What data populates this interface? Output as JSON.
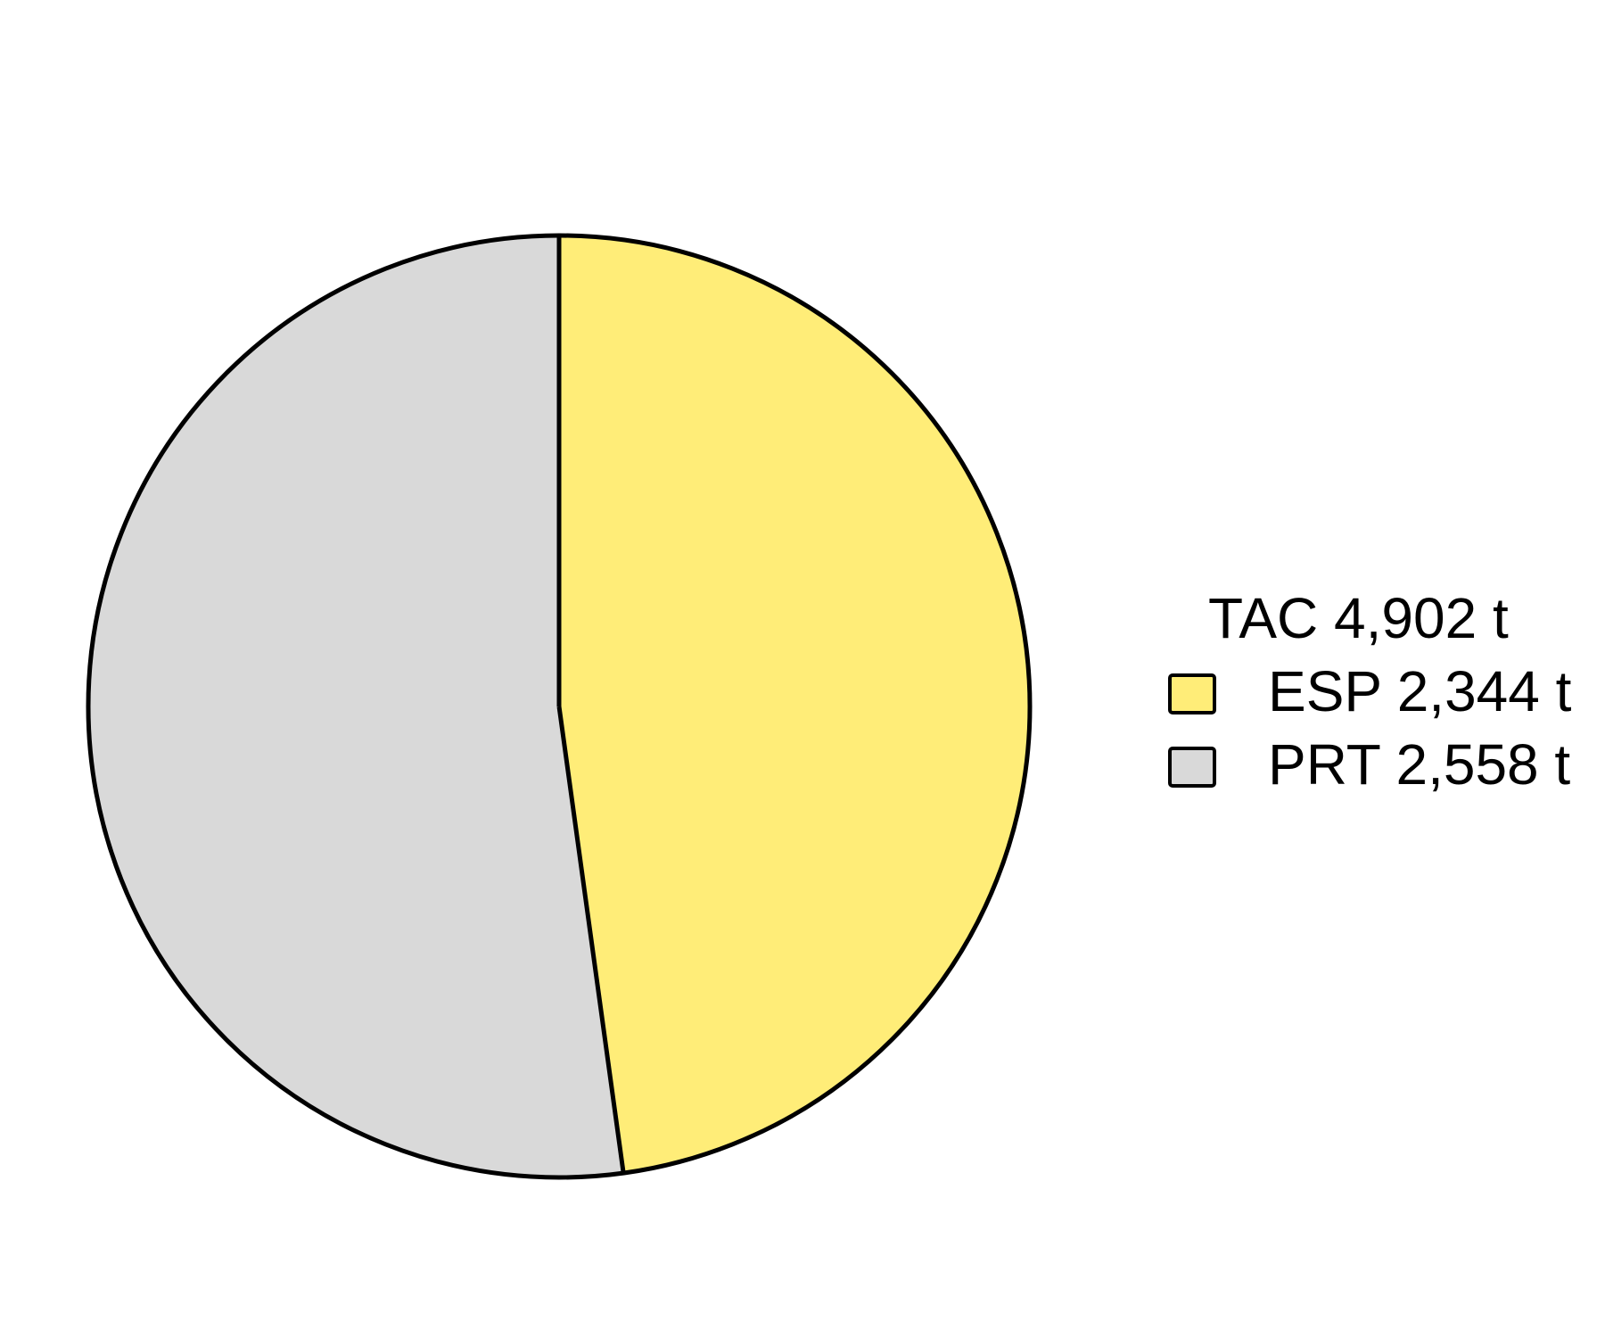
{
  "chart_data": {
    "type": "pie",
    "title": "",
    "legend_title": "TAC 4,902 t",
    "legend_position": "right",
    "start_angle_deg": 90,
    "direction": "clockwise",
    "slices": [
      {
        "label": "ESP 2,344 t",
        "category": "ESP",
        "value": 2344,
        "color": "#FFED78"
      },
      {
        "label": "PRT 2,558 t",
        "category": "PRT",
        "value": 2558,
        "color": "#D9D9D9"
      }
    ]
  }
}
